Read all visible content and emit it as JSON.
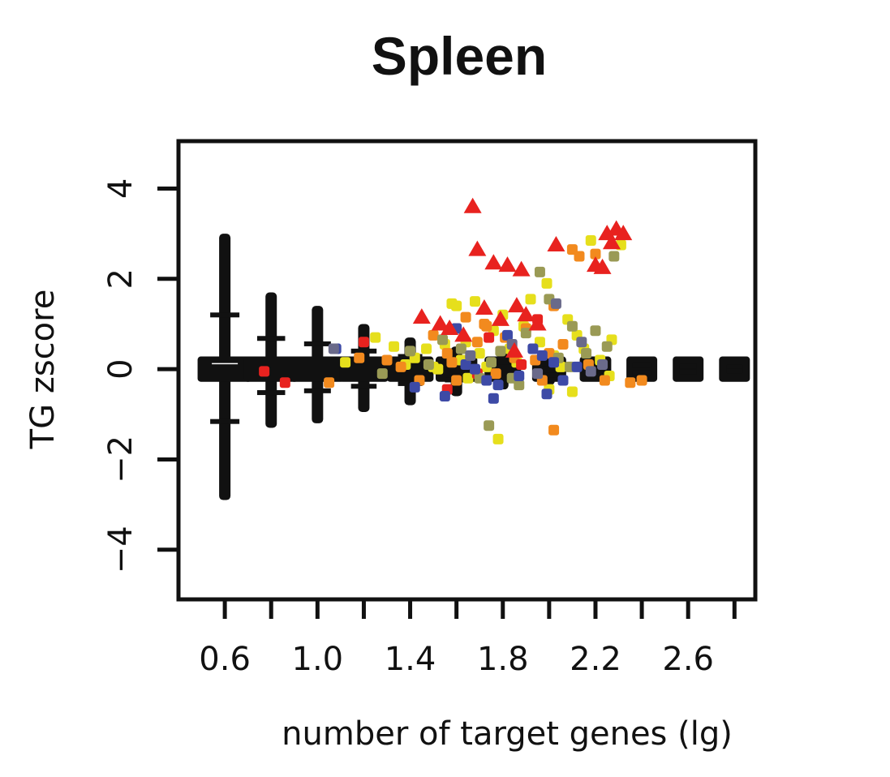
{
  "chart_data": {
    "type": "scatter",
    "title": "Spleen",
    "xlabel": "number of target genes (lg)",
    "ylabel": "TG zscore",
    "xlim": [
      0.4,
      2.89
    ],
    "ylim": [
      -5.1,
      5.05
    ],
    "x_ticks": [
      0.6,
      0.8,
      1.0,
      1.2,
      1.4,
      1.6,
      1.8,
      2.0,
      2.2,
      2.4,
      2.6,
      2.8
    ],
    "x_tick_labels": [
      "0.6",
      "1.0",
      "1.4",
      "1.8",
      "2.2",
      "2.6"
    ],
    "y_ticks": [
      4,
      2,
      0,
      -2,
      -4
    ],
    "y_tick_labels": [
      "4",
      "2",
      "0",
      "−2",
      "−4"
    ],
    "grid": false,
    "legend": "none",
    "colors": {
      "background_stacks": "#111111",
      "red": "#e8221f",
      "orange": "#f28a1e",
      "yellow": "#e6df1c",
      "olive": "#9a9a55",
      "blue": "#3d4aa6",
      "slate": "#6a6a8a"
    },
    "background_stacks": [
      {
        "x": 0.6,
        "ymin": -2.9,
        "ymax": 3.0,
        "band": 0.15
      },
      {
        "x": 0.8,
        "ymin": -1.3,
        "ymax": 1.7,
        "band": 0.15
      },
      {
        "x": 1.0,
        "ymin": -1.2,
        "ymax": 1.4,
        "band": 0.15
      },
      {
        "x": 1.2,
        "ymin": -0.95,
        "ymax": 1.0,
        "band": 0.13
      },
      {
        "x": 1.4,
        "ymin": -0.8,
        "ymax": 0.7,
        "band": 0.12
      },
      {
        "x": 1.6,
        "ymin": -0.6,
        "ymax": 0.5,
        "band": 0.1
      },
      {
        "x": 1.8,
        "ymin": -0.45,
        "ymax": 0.4,
        "band": 0.08
      },
      {
        "x": 2.0,
        "ymin": -0.35,
        "ymax": 0.3,
        "band": 0.07
      },
      {
        "x": 2.2,
        "ymin": -0.25,
        "ymax": 0.25,
        "band": 0.06
      },
      {
        "x": 2.4,
        "ymin": -0.2,
        "ymax": 0.2,
        "band": 0.05
      },
      {
        "x": 2.6,
        "ymin": -0.15,
        "ymax": 0.15,
        "band": 0.05
      },
      {
        "x": 2.8,
        "ymin": -0.1,
        "ymax": 0.1,
        "band": 0.04
      }
    ],
    "triangles": [
      [
        1.67,
        3.6
      ],
      [
        1.69,
        2.65
      ],
      [
        1.76,
        2.35
      ],
      [
        1.82,
        2.3
      ],
      [
        1.88,
        2.2
      ],
      [
        2.03,
        2.75
      ],
      [
        2.2,
        2.3
      ],
      [
        2.23,
        2.25
      ],
      [
        2.25,
        3.0
      ],
      [
        2.29,
        3.1
      ],
      [
        2.32,
        3.0
      ],
      [
        2.27,
        2.8
      ],
      [
        1.45,
        1.15
      ],
      [
        1.53,
        1.0
      ],
      [
        1.57,
        0.9
      ],
      [
        1.63,
        0.75
      ],
      [
        1.72,
        1.35
      ],
      [
        1.79,
        1.1
      ],
      [
        1.86,
        1.4
      ],
      [
        1.9,
        1.2
      ],
      [
        1.95,
        1.0
      ],
      [
        1.85,
        0.4
      ]
    ],
    "squares": [
      {
        "color": "yellow",
        "points": [
          [
            1.12,
            0.15
          ],
          [
            1.25,
            0.7
          ],
          [
            1.33,
            0.5
          ],
          [
            1.38,
            0.1
          ],
          [
            1.42,
            0.25
          ],
          [
            1.47,
            0.45
          ],
          [
            1.5,
            0.05
          ],
          [
            1.55,
            0.55
          ],
          [
            1.58,
            1.45
          ],
          [
            1.6,
            1.4
          ],
          [
            1.62,
            0.2
          ],
          [
            1.64,
            0.6
          ],
          [
            1.68,
            1.5
          ],
          [
            1.7,
            0.35
          ],
          [
            1.73,
            0.05
          ],
          [
            1.76,
            0.85
          ],
          [
            1.8,
            1.2
          ],
          [
            1.83,
            0.45
          ],
          [
            1.86,
            0.15
          ],
          [
            1.89,
            0.95
          ],
          [
            1.92,
            1.55
          ],
          [
            1.96,
            0.6
          ],
          [
            1.99,
            1.9
          ],
          [
            2.02,
            0.3
          ],
          [
            2.05,
            0.05
          ],
          [
            2.08,
            1.1
          ],
          [
            2.12,
            0.75
          ],
          [
            2.15,
            0.45
          ],
          [
            2.18,
            2.85
          ],
          [
            2.22,
            0.2
          ],
          [
            2.27,
            0.65
          ],
          [
            2.31,
            2.75
          ],
          [
            1.78,
            -1.55
          ],
          [
            1.65,
            -0.2
          ],
          [
            1.52,
            0.0
          ],
          [
            2.0,
            -0.45
          ],
          [
            2.1,
            -0.5
          ],
          [
            2.26,
            -0.15
          ]
        ]
      },
      {
        "color": "orange",
        "points": [
          [
            1.05,
            -0.3
          ],
          [
            1.18,
            0.25
          ],
          [
            1.3,
            0.2
          ],
          [
            1.36,
            0.05
          ],
          [
            1.44,
            -0.25
          ],
          [
            1.5,
            0.75
          ],
          [
            1.56,
            0.35
          ],
          [
            1.6,
            -0.25
          ],
          [
            1.64,
            1.15
          ],
          [
            1.69,
            0.6
          ],
          [
            1.73,
            0.95
          ],
          [
            1.77,
            -0.1
          ],
          [
            1.81,
            0.7
          ],
          [
            1.85,
            0.25
          ],
          [
            1.9,
            0.9
          ],
          [
            1.94,
            0.2
          ],
          [
            1.97,
            -0.25
          ],
          [
            2.0,
            0.35
          ],
          [
            2.02,
            1.4
          ],
          [
            2.06,
            0.55
          ],
          [
            2.1,
            2.65
          ],
          [
            2.13,
            2.5
          ],
          [
            2.17,
            0.1
          ],
          [
            2.2,
            2.55
          ],
          [
            2.24,
            -0.25
          ],
          [
            2.02,
            -1.35
          ],
          [
            1.72,
            1.0
          ],
          [
            1.58,
            0.15
          ],
          [
            2.35,
            -0.3
          ],
          [
            2.4,
            -0.25
          ]
        ]
      },
      {
        "color": "red",
        "points": [
          [
            0.77,
            -0.05
          ],
          [
            0.86,
            -0.3
          ],
          [
            1.2,
            0.6
          ],
          [
            1.56,
            -0.45
          ],
          [
            1.74,
            0.7
          ],
          [
            1.88,
            0.1
          ],
          [
            1.95,
            1.1
          ],
          [
            1.69,
            -0.1
          ]
        ]
      },
      {
        "color": "olive",
        "points": [
          [
            1.28,
            -0.1
          ],
          [
            1.4,
            0.4
          ],
          [
            1.48,
            0.1
          ],
          [
            1.54,
            0.65
          ],
          [
            1.62,
            0.45
          ],
          [
            1.7,
            -0.2
          ],
          [
            1.75,
            0.15
          ],
          [
            1.79,
            0.4
          ],
          [
            1.84,
            -0.2
          ],
          [
            1.9,
            0.8
          ],
          [
            1.96,
            2.15
          ],
          [
            2.0,
            1.55
          ],
          [
            2.04,
            0.25
          ],
          [
            2.09,
            0.05
          ],
          [
            2.16,
            0.35
          ],
          [
            2.2,
            0.85
          ],
          [
            2.25,
            0.5
          ],
          [
            2.28,
            2.5
          ],
          [
            1.74,
            -1.25
          ],
          [
            2.1,
            0.95
          ],
          [
            1.87,
            -0.35
          ]
        ]
      },
      {
        "color": "blue",
        "points": [
          [
            1.08,
            0.45
          ],
          [
            1.42,
            -0.4
          ],
          [
            1.55,
            -0.6
          ],
          [
            1.6,
            0.9
          ],
          [
            1.68,
            0.0
          ],
          [
            1.73,
            -0.25
          ],
          [
            1.78,
            -0.35
          ],
          [
            1.82,
            0.75
          ],
          [
            1.87,
            -0.15
          ],
          [
            1.93,
            0.45
          ],
          [
            1.97,
            0.3
          ],
          [
            2.02,
            0.15
          ],
          [
            2.06,
            -0.25
          ],
          [
            2.12,
            0.05
          ],
          [
            1.76,
            -0.65
          ],
          [
            1.99,
            -0.55
          ],
          [
            1.64,
            0.1
          ]
        ]
      },
      {
        "color": "slate",
        "points": [
          [
            1.07,
            0.45
          ],
          [
            1.66,
            0.3
          ],
          [
            1.84,
            0.55
          ],
          [
            1.95,
            -0.1
          ],
          [
            2.03,
            1.45
          ],
          [
            2.14,
            0.6
          ],
          [
            2.18,
            -0.05
          ],
          [
            2.23,
            0.1
          ]
        ]
      }
    ]
  }
}
